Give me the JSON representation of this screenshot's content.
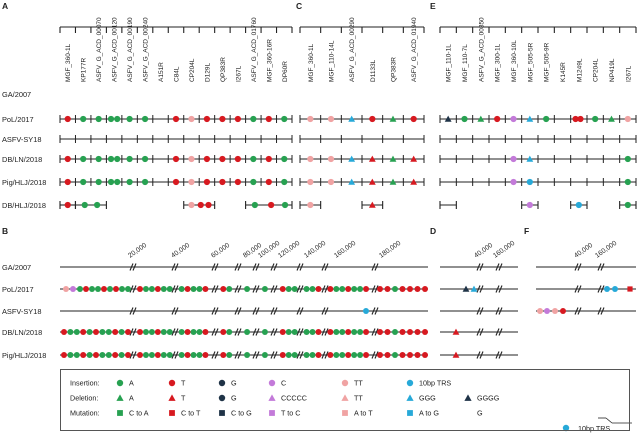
{
  "panel_a": {
    "letter": "A",
    "genes": [
      "MGF_360-1L",
      "KP177R",
      "ASFV_G_ACD_00070",
      "ASFV_G_ACD_00120",
      "ASFV_G_ACD_00190",
      "ASFV_G_ACD_00240",
      "A151R",
      "C84L",
      "CP204L",
      "D129L",
      "QP383R",
      "I267L",
      "ASFV_G_ACD_01760",
      "MGF_360-16R",
      "DP60R"
    ]
  },
  "panel_c": {
    "letter": "C",
    "genes": [
      "MGF_360-1L",
      "MGF_110-14L",
      "ASFV_G_ACD_00290",
      "D1133L",
      "QP383R",
      "ASFV_G_ACD_01940"
    ]
  },
  "panel_e": {
    "letter": "E",
    "genes": [
      "MGF_110-1L",
      "MGF_110-7L",
      "ASFV_G_ACD_00350",
      "MGF_300-1L",
      "MGF_360-10L",
      "MGF_505-5R",
      "MGF_505-9R",
      "K145R",
      "M1249L",
      "CP204L",
      "NP419L",
      "I267L"
    ]
  },
  "strains_top": [
    "GA/2007",
    "PoL/2017",
    "ASFV-SY18",
    "DB/LN/2018",
    "Pig/HLJ/2018",
    "DB/HLJ/2018"
  ],
  "panel_b": {
    "letter": "B",
    "ticks": [
      "20,000",
      "40,000",
      "60,000",
      "80,000",
      "100,000",
      "120,000",
      "140,000",
      "160,000",
      "180,000"
    ]
  },
  "panel_d": {
    "letter": "D",
    "ticks": [
      "40,000",
      "160,000"
    ]
  },
  "panel_f": {
    "letter": "F",
    "ticks": [
      "40,000",
      "160,000"
    ]
  },
  "strains_bottom": [
    "GA/2007",
    "PoL/2017",
    "ASFV-SY18",
    "DB/LN/2018",
    "Pig/HLJ/2018"
  ],
  "legend": {
    "rows": [
      {
        "label": "Insertion:",
        "items": [
          {
            "shape": "circle",
            "color": "#27a151",
            "text": "A"
          },
          {
            "shape": "circle",
            "color": "#d71920",
            "text": "T"
          },
          {
            "shape": "circle",
            "color": "#1f3347",
            "text": "G"
          },
          {
            "shape": "circle",
            "color": "#c37ad9",
            "text": "C"
          },
          {
            "shape": "circle",
            "color": "#f0a3a3",
            "text": "TT"
          },
          {
            "shape": "circle",
            "color": "#27a9d8",
            "text": "10bp TRS"
          }
        ]
      },
      {
        "label": "Deletion:",
        "items": [
          {
            "shape": "triangle",
            "color": "#27a151",
            "text": "A"
          },
          {
            "shape": "triangle",
            "color": "#d71920",
            "text": "T"
          },
          {
            "shape": "circle",
            "color": "#1f3347",
            "text": "G"
          },
          {
            "shape": "triangle",
            "color": "#c37ad9",
            "text": "CCCCC"
          },
          {
            "shape": "triangle",
            "color": "#f0a3a3",
            "text": "TT"
          },
          {
            "shape": "triangle",
            "color": "#27a9d8",
            "text": "GGG"
          },
          {
            "shape": "triangle",
            "color": "#1f3347",
            "text": "GGGG"
          }
        ]
      },
      {
        "label": "Mutation:",
        "items": [
          {
            "shape": "square",
            "color": "#27a151",
            "text": "C to A"
          },
          {
            "shape": "square",
            "color": "#d71920",
            "text": "C to T"
          },
          {
            "shape": "square",
            "color": "#1f3347",
            "text": "C to G"
          },
          {
            "shape": "square",
            "color": "#c37ad9",
            "text": "T to C"
          },
          {
            "shape": "square",
            "color": "#f0a3a3",
            "text": "A to T"
          },
          {
            "shape": "square",
            "color": "#27a9d8",
            "text": "A to G"
          },
          {
            "shape": "none",
            "color": "#1f3347",
            "text": "G"
          }
        ]
      }
    ],
    "overflow_text": "10bp TRS"
  },
  "colors": {
    "green": "#27a151",
    "red": "#d71920",
    "navy": "#1f3347",
    "purple": "#c37ad9",
    "pink": "#f0a3a3",
    "cyan": "#27a9d8"
  }
}
